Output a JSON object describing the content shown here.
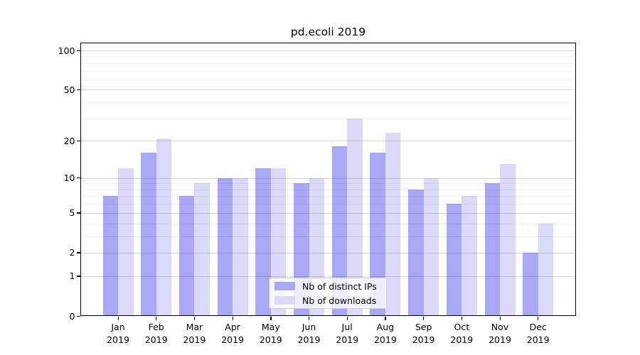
{
  "title": "pd.ecoli 2019",
  "colors": {
    "bar_distinct_ips": "#a8a8f6",
    "bar_downloads": "#dbdbf9",
    "grid_major": "rgba(0,0,0,0.14)",
    "grid_minor": "rgba(0,0,0,0.065)",
    "axis": "#000000",
    "legend_border": "#cccccc",
    "legend_background": "rgba(255,255,255,0.8)"
  },
  "chart_data": {
    "type": "bar",
    "title": "pd.ecoli 2019",
    "categories": [
      "Jan 2019",
      "Feb 2019",
      "Mar 2019",
      "Apr 2019",
      "May 2019",
      "Jun 2019",
      "Jul 2019",
      "Aug 2019",
      "Sep 2019",
      "Oct 2019",
      "Nov 2019",
      "Dec 2019"
    ],
    "month_labels": [
      "Jan",
      "Feb",
      "Mar",
      "Apr",
      "May",
      "Jun",
      "Jul",
      "Aug",
      "Sep",
      "Oct",
      "Nov",
      "Dec"
    ],
    "year_label": "2019",
    "series": [
      {
        "name": "Nb of distinct IPs",
        "color": "#a8a8f6",
        "values": [
          7,
          16,
          7,
          10,
          12,
          9,
          18,
          16,
          8,
          6,
          9,
          2
        ]
      },
      {
        "name": "Nb of downloads",
        "color": "#dbdbf9",
        "values": [
          12,
          21,
          9,
          10,
          12,
          10,
          30,
          23,
          10,
          7,
          13,
          4
        ]
      }
    ],
    "xlabel": "",
    "ylabel": "",
    "y_scale": "symlog (linear near 0, logarithmic above; position ~ ln(1+v))",
    "y_major_ticks": [
      0,
      1,
      2,
      5,
      10,
      20,
      50,
      100
    ],
    "y_minor_ticks": [
      3,
      4,
      6,
      7,
      8,
      9,
      30,
      40,
      60,
      70,
      80,
      90
    ],
    "ylim": [
      0,
      114
    ],
    "grid": "horizontal major+minor gridlines drawn over bars",
    "legend_position": "lower center inside plot"
  }
}
